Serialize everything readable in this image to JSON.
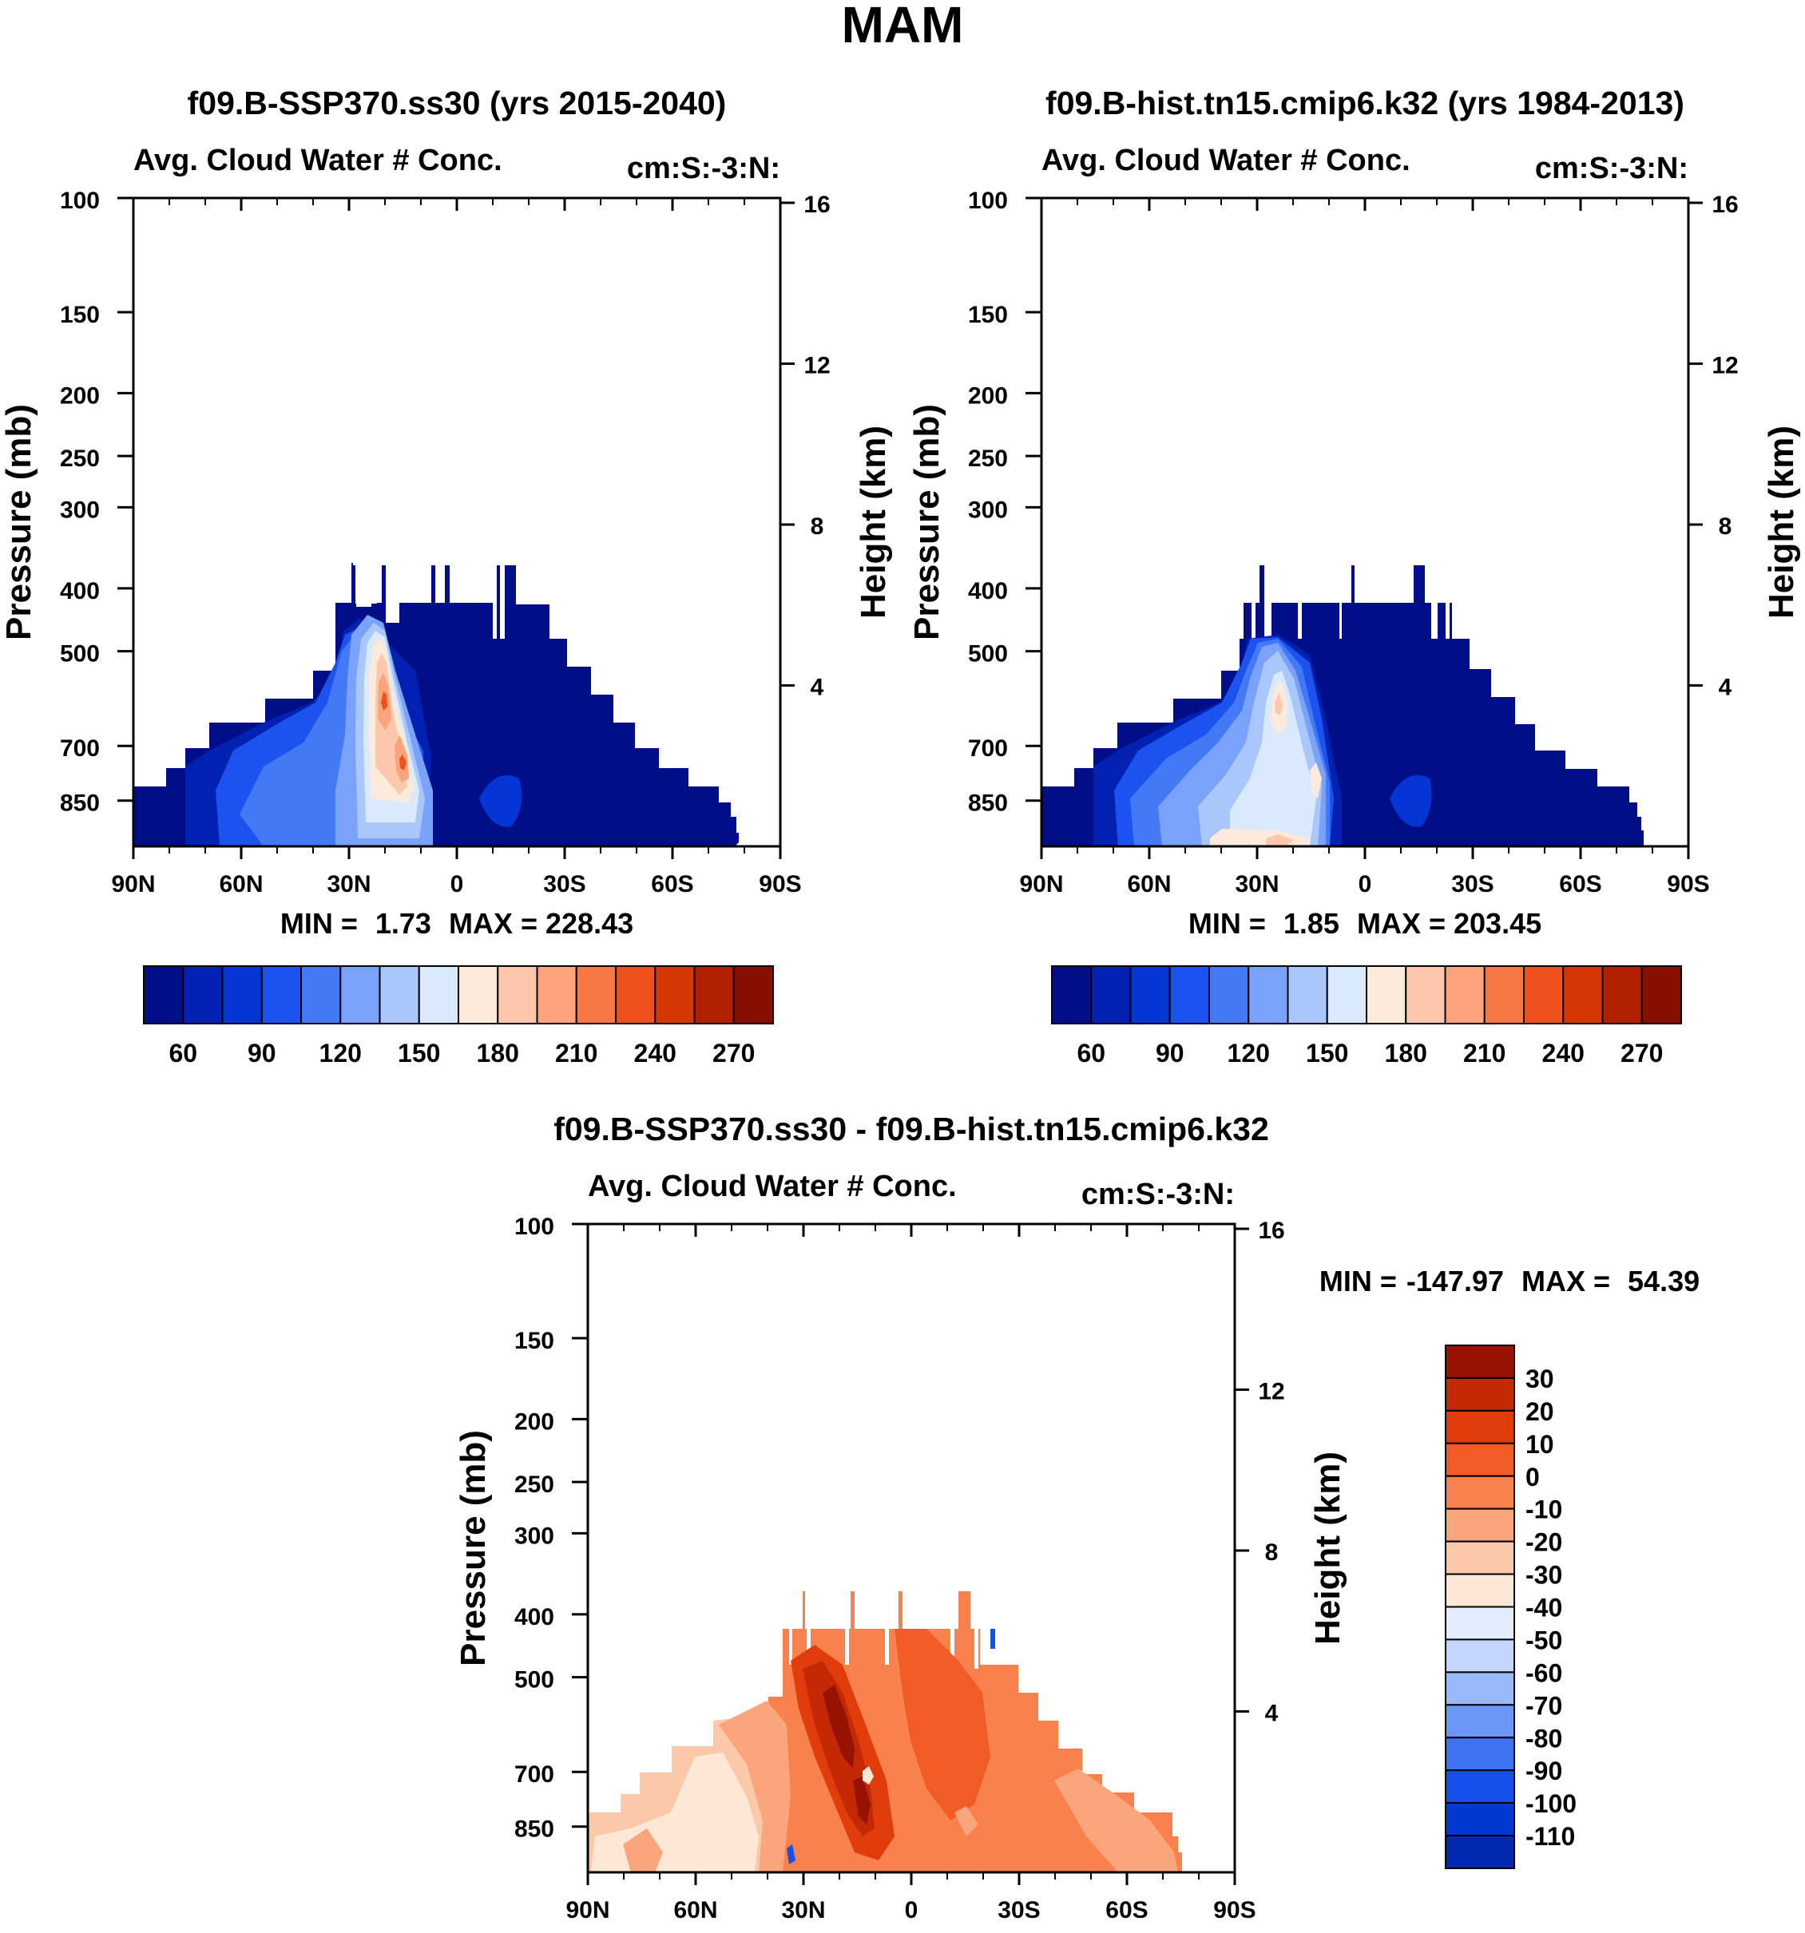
{
  "figure_title": "MAM",
  "colors": {
    "seq": [
      "#000f87",
      "#0021b1",
      "#0436d4",
      "#1c52ed",
      "#4479f6",
      "#7ba2fb",
      "#aac7fc",
      "#dbe9fd",
      "#fdeadb",
      "#fcc7aa",
      "#fba37b",
      "#f67944",
      "#ed521c",
      "#d43604",
      "#b12100",
      "#870f00"
    ],
    "diff": [
      "#001a90",
      "#0028b0",
      "#0038d0",
      "#1550ec",
      "#3c74f4",
      "#6b98f8",
      "#98b9fa",
      "#c3d6fc",
      "#e3ecfd",
      "#fde8d6",
      "#fcc8aa",
      "#fba57c",
      "#f8814e",
      "#f15b24",
      "#e03d0a",
      "#c32905",
      "#961300"
    ]
  },
  "chart_data": [
    {
      "type": "heatmap",
      "id": "panel1",
      "title": "f09.B-SSP370.ss30 (yrs 2015-2040)",
      "left_label": "Avg. Cloud Water # Conc.",
      "right_label": "cm:S:-3:N:",
      "ylabel": "Pressure (mb)",
      "y2label": "Height (km)",
      "yticks": [
        100,
        150,
        200,
        250,
        300,
        400,
        500,
        700,
        850
      ],
      "ylim_mb": [
        100,
        1000
      ],
      "y2ticks_km": [
        16,
        12,
        8,
        4
      ],
      "xticks": [
        "90N",
        "60N",
        "30N",
        "0",
        "30S",
        "60S",
        "90S"
      ],
      "xlim_lat": [
        90,
        -90
      ],
      "min_label": "MIN =",
      "min_value": "1.73",
      "max_label": "MAX =",
      "max_value": "228.43",
      "colorbar_orientation": "horizontal",
      "colorbar_ticks": [
        "60",
        "90",
        "120",
        "150",
        "180",
        "210",
        "240",
        "270"
      ],
      "colorbar_ticks_at_boundaries": [
        1,
        3,
        5,
        7,
        9,
        11,
        13,
        15
      ],
      "colorbar_levels": 16
    },
    {
      "type": "heatmap",
      "id": "panel2",
      "title": "f09.B-hist.tn15.cmip6.k32 (yrs 1984-2013)",
      "left_label": "Avg. Cloud Water # Conc.",
      "right_label": "cm:S:-3:N:",
      "ylabel": "Pressure (mb)",
      "y2label": "Height (km)",
      "yticks": [
        100,
        150,
        200,
        250,
        300,
        400,
        500,
        700,
        850
      ],
      "ylim_mb": [
        100,
        1000
      ],
      "y2ticks_km": [
        16,
        12,
        8,
        4
      ],
      "xticks": [
        "90N",
        "60N",
        "30N",
        "0",
        "30S",
        "60S",
        "90S"
      ],
      "xlim_lat": [
        90,
        -90
      ],
      "min_label": "MIN =",
      "min_value": "1.85",
      "max_label": "MAX =",
      "max_value": "203.45",
      "colorbar_orientation": "horizontal",
      "colorbar_ticks": [
        "60",
        "90",
        "120",
        "150",
        "180",
        "210",
        "240",
        "270"
      ],
      "colorbar_ticks_at_boundaries": [
        1,
        3,
        5,
        7,
        9,
        11,
        13,
        15
      ],
      "colorbar_levels": 16
    },
    {
      "type": "heatmap",
      "id": "panel3",
      "title": "f09.B-SSP370.ss30 - f09.B-hist.tn15.cmip6.k32",
      "left_label": "Avg. Cloud Water # Conc.",
      "right_label": "cm:S:-3:N:",
      "ylabel": "Pressure (mb)",
      "y2label": "Height (km)",
      "yticks": [
        100,
        150,
        200,
        250,
        300,
        400,
        500,
        700,
        850
      ],
      "ylim_mb": [
        100,
        1000
      ],
      "y2ticks_km": [
        16,
        12,
        8,
        4
      ],
      "xticks": [
        "90N",
        "60N",
        "30N",
        "0",
        "30S",
        "60S",
        "90S"
      ],
      "xlim_lat": [
        90,
        -90
      ],
      "min_label": "MIN =",
      "min_value": "-147.97",
      "max_label": "MAX =",
      "max_value": "54.39",
      "colorbar_orientation": "vertical",
      "colorbar_ticks": [
        "30",
        "20",
        "10",
        "0",
        "-10",
        "-20",
        "-30",
        "-40",
        "-50",
        "-60",
        "-70",
        "-80",
        "-90",
        "-100",
        "-110"
      ],
      "colorbar_levels": 16
    }
  ]
}
